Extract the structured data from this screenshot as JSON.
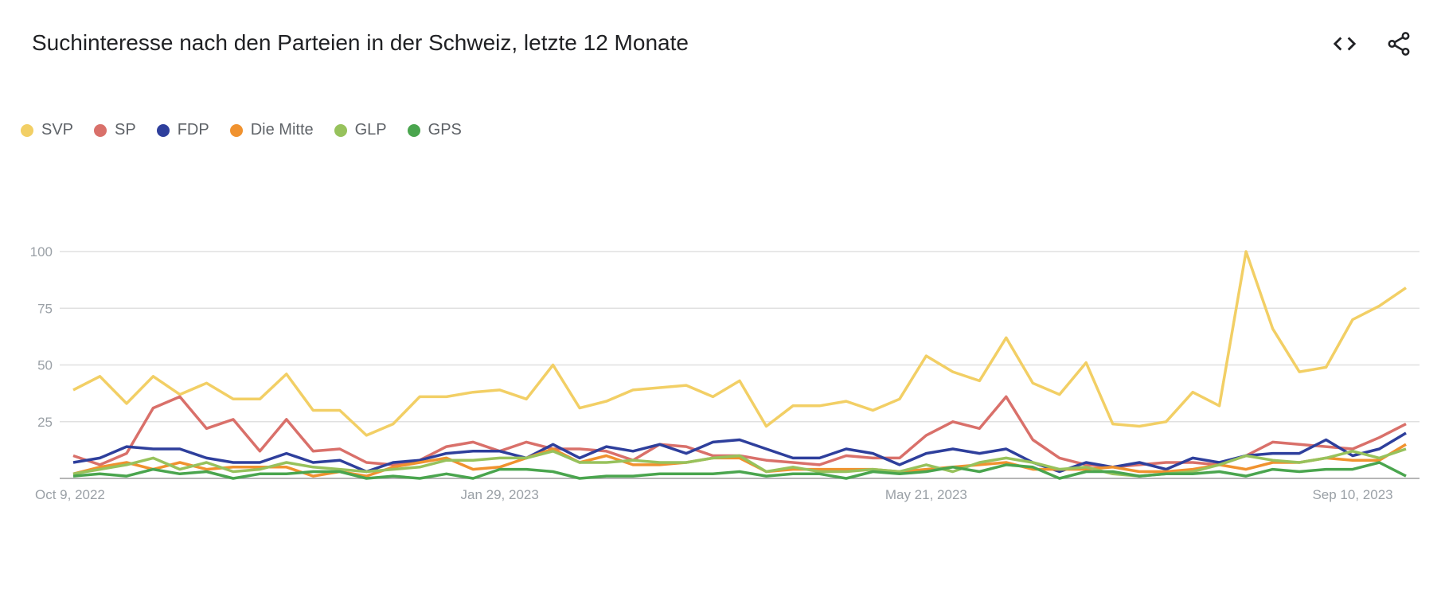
{
  "header": {
    "title": "Suchinteresse nach den Parteien in der Schweiz, letzte 12 Monate",
    "embed_icon": "code-icon",
    "share_icon": "share-icon"
  },
  "chart_data": {
    "type": "line",
    "title": "Suchinteresse nach den Parteien in der Schweiz, letzte 12 Monate",
    "xlabel": "",
    "ylabel": "",
    "ylim": [
      0,
      100
    ],
    "yticks": [
      "100",
      "75",
      "50",
      "25"
    ],
    "ytick_values": [
      100,
      75,
      50,
      25
    ],
    "xtick_labels": [
      {
        "label": "Oct 9, 2022",
        "index": 0
      },
      {
        "label": "Jan 29, 2023",
        "index": 16
      },
      {
        "label": "May 21, 2023",
        "index": 32
      },
      {
        "label": "Sep 10, 2023",
        "index": 48
      }
    ],
    "x_start": "Oct 9, 2022",
    "x_interval": "weekly",
    "grid": true,
    "legend_position": "top-left",
    "series": [
      {
        "name": "SVP",
        "color": "#f2cf65",
        "values": [
          39,
          45,
          33,
          45,
          37,
          42,
          35,
          35,
          46,
          30,
          30,
          19,
          24,
          36,
          36,
          38,
          39,
          35,
          50,
          31,
          34,
          39,
          40,
          41,
          36,
          43,
          23,
          32,
          32,
          34,
          30,
          35,
          54,
          47,
          43,
          62,
          42,
          37,
          51,
          24,
          23,
          25,
          38,
          32,
          100,
          66,
          47,
          49,
          70,
          76,
          84
        ]
      },
      {
        "name": "SP",
        "color": "#d9706a",
        "values": [
          10,
          6,
          11,
          31,
          36,
          22,
          26,
          12,
          26,
          12,
          13,
          7,
          6,
          8,
          14,
          16,
          12,
          16,
          13,
          13,
          12,
          8,
          15,
          14,
          10,
          10,
          8,
          7,
          6,
          10,
          9,
          9,
          19,
          25,
          22,
          36,
          17,
          9,
          6,
          5,
          6,
          7,
          7,
          6,
          10,
          16,
          15,
          14,
          13,
          18,
          24
        ]
      },
      {
        "name": "FDP",
        "color": "#2e3f9c",
        "values": [
          7,
          9,
          14,
          13,
          13,
          9,
          7,
          7,
          11,
          7,
          8,
          3,
          7,
          8,
          11,
          12,
          12,
          9,
          15,
          9,
          14,
          12,
          15,
          11,
          16,
          17,
          13,
          9,
          9,
          13,
          11,
          6,
          11,
          13,
          11,
          13,
          7,
          3,
          7,
          5,
          7,
          4,
          9,
          7,
          10,
          11,
          11,
          17,
          10,
          13,
          20
        ]
      },
      {
        "name": "Die Mitte",
        "color": "#f0922f",
        "values": [
          2,
          5,
          7,
          4,
          7,
          4,
          5,
          5,
          5,
          1,
          3,
          1,
          5,
          7,
          9,
          4,
          5,
          9,
          13,
          7,
          10,
          6,
          6,
          7,
          9,
          9,
          3,
          4,
          4,
          4,
          4,
          3,
          4,
          5,
          6,
          7,
          4,
          4,
          4,
          5,
          3,
          3,
          4,
          6,
          4,
          7,
          7,
          9,
          8,
          8,
          15
        ]
      },
      {
        "name": "GLP",
        "color": "#97c25c",
        "values": [
          2,
          4,
          6,
          9,
          4,
          7,
          3,
          4,
          7,
          5,
          4,
          3,
          4,
          5,
          8,
          8,
          9,
          9,
          12,
          7,
          7,
          8,
          7,
          7,
          9,
          10,
          3,
          5,
          3,
          3,
          4,
          3,
          6,
          3,
          7,
          9,
          7,
          4,
          5,
          2,
          1,
          2,
          3,
          6,
          10,
          8,
          7,
          9,
          12,
          9,
          13
        ]
      },
      {
        "name": "GPS",
        "color": "#4aa54e",
        "values": [
          1,
          2,
          1,
          4,
          2,
          3,
          0,
          2,
          2,
          3,
          3,
          0,
          1,
          0,
          2,
          0,
          4,
          4,
          3,
          0,
          1,
          1,
          2,
          2,
          2,
          3,
          1,
          2,
          2,
          0,
          3,
          2,
          3,
          5,
          3,
          6,
          5,
          0,
          3,
          3,
          1,
          2,
          2,
          3,
          1,
          4,
          3,
          4,
          4,
          7,
          1
        ]
      }
    ]
  }
}
